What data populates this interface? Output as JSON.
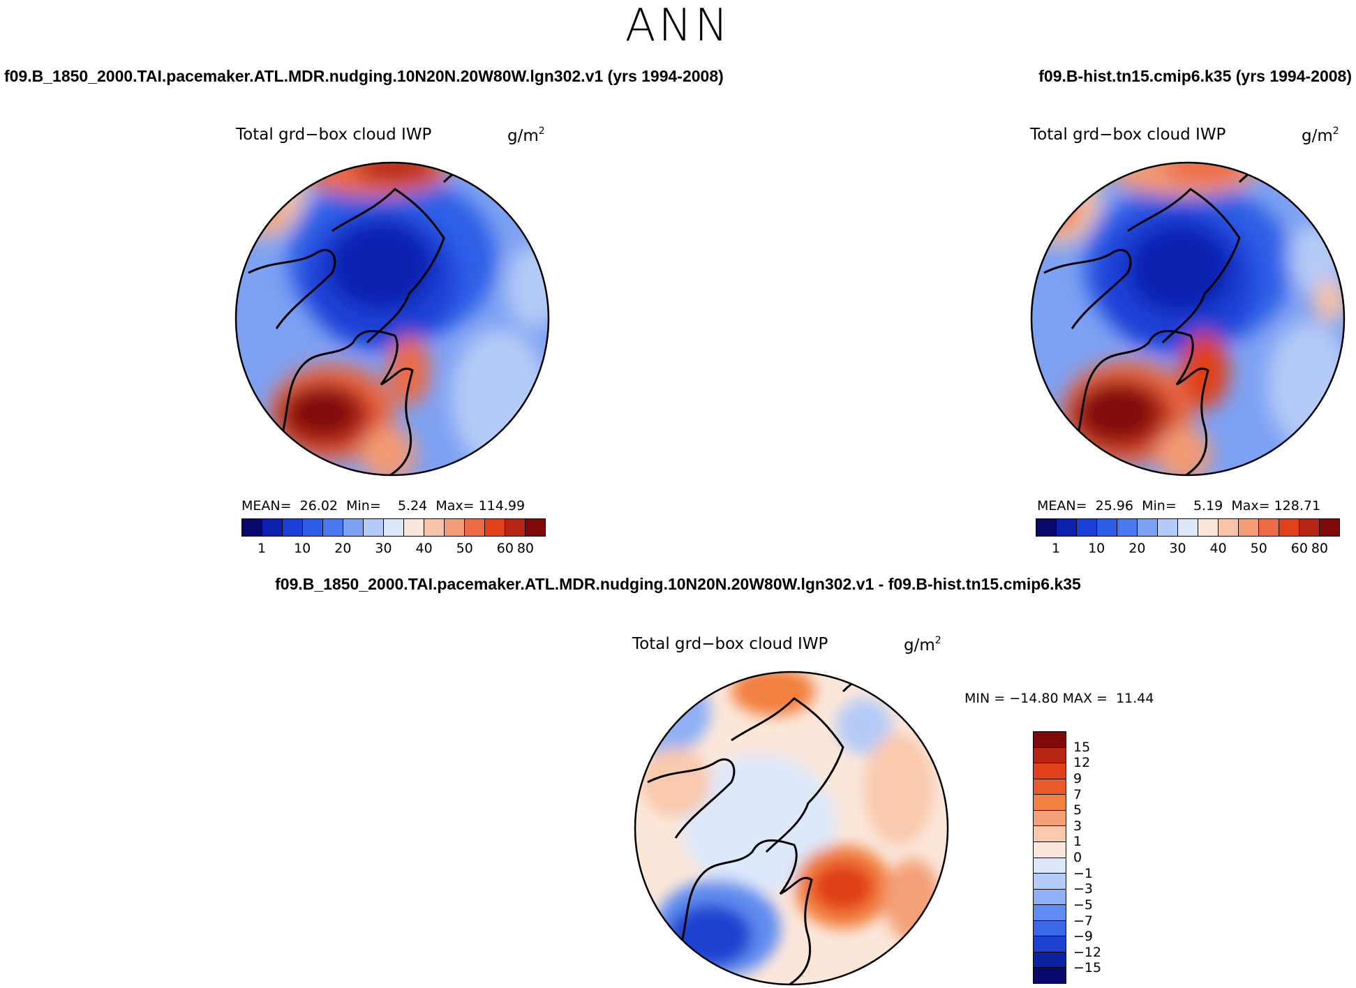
{
  "header": {
    "season": "ANN"
  },
  "chart_data": [
    {
      "type": "heatmap",
      "projection": "north-polar-stereographic",
      "case_title": "f09.B_1850_2000.TAI.pacemaker.ATL.MDR.nudging.10N20N.20W80W.lgn302.v1 (yrs 1994-2008)",
      "variable": "Total grd−box cloud IWP",
      "units": "g/m",
      "units_exp": "2",
      "stats": {
        "mean_label": "MEAN=",
        "mean": "26.02",
        "min_label": "Min=",
        "min": "5.24",
        "max_label": "Max=",
        "max": "114.99"
      },
      "colorbar_labels": [
        "1",
        "10",
        "20",
        "30",
        "40",
        "50",
        "60",
        "80"
      ],
      "colorbar_levels": [
        1,
        5,
        10,
        15,
        20,
        25,
        30,
        35,
        40,
        45,
        50,
        55,
        60,
        70,
        80
      ]
    },
    {
      "type": "heatmap",
      "projection": "north-polar-stereographic",
      "case_title": "f09.B-hist.tn15.cmip6.k35 (yrs 1994-2008)",
      "variable": "Total grd−box cloud IWP",
      "units": "g/m",
      "units_exp": "2",
      "stats": {
        "mean_label": "MEAN=",
        "mean": "25.96",
        "min_label": "Min=",
        "min": "5.19",
        "max_label": "Max=",
        "max": "128.71"
      },
      "colorbar_labels": [
        "1",
        "10",
        "20",
        "30",
        "40",
        "50",
        "60",
        "80"
      ],
      "colorbar_levels": [
        1,
        5,
        10,
        15,
        20,
        25,
        30,
        35,
        40,
        45,
        50,
        55,
        60,
        70,
        80
      ]
    },
    {
      "type": "heatmap",
      "projection": "north-polar-stereographic",
      "case_title": "f09.B_1850_2000.TAI.pacemaker.ATL.MDR.nudging.10N20N.20W80W.lgn302.v1 - f09.B-hist.tn15.cmip6.k35",
      "variable": "Total grd−box cloud IWP",
      "units": "g/m",
      "units_exp": "2",
      "stats": {
        "min_label": "MIN =",
        "min": "−14.80",
        "max_label": "MAX =",
        "max": "11.44"
      },
      "colorbar_labels": [
        "15",
        "12",
        "9",
        "7",
        "5",
        "3",
        "1",
        "0",
        "−1",
        "−3",
        "−5",
        "−7",
        "−9",
        "−12",
        "−15"
      ]
    }
  ],
  "palettes": {
    "abs": [
      "#08086b",
      "#0b22b0",
      "#1a3fd6",
      "#2f5ee6",
      "#4a78ee",
      "#7da1f3",
      "#b5cbf7",
      "#dde8fb",
      "#fbe7da",
      "#f8c3a6",
      "#f29a75",
      "#ec6a45",
      "#e04118",
      "#b82514",
      "#800a0a"
    ],
    "diff": [
      "#800a0a",
      "#b82514",
      "#e04118",
      "#ec5a2a",
      "#f2803f",
      "#f4a079",
      "#f9c9ad",
      "#fbe7da",
      "#dde8fb",
      "#b5cbf7",
      "#8fb0f5",
      "#5f8cf0",
      "#3a68e4",
      "#1c42cf",
      "#0b22a0",
      "#08086b"
    ]
  }
}
